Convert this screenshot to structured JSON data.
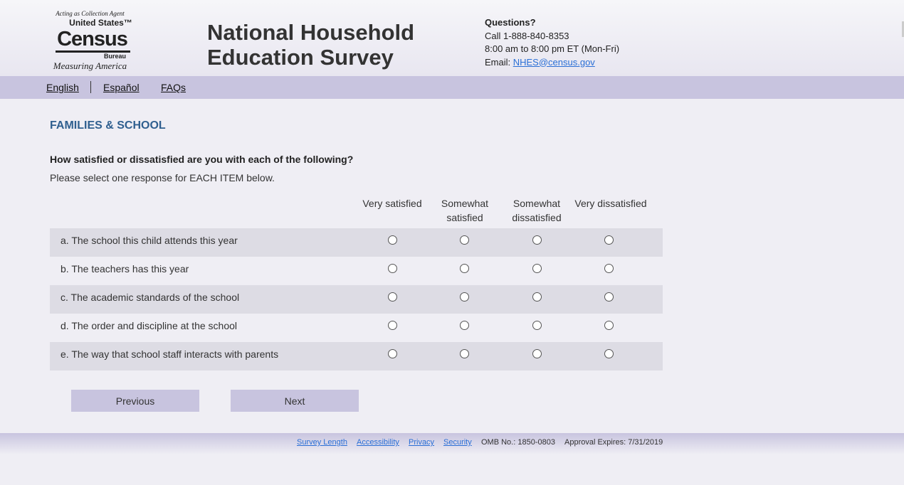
{
  "logo": {
    "agent": "Acting as Collection Agent",
    "us": "United States™",
    "census": "Census",
    "bureau": "Bureau",
    "tagline": "Measuring America"
  },
  "title": [
    "National Household",
    "Education Survey"
  ],
  "contact": {
    "heading": "Questions?",
    "phone": "Call 1-888-840-8353",
    "hours": "8:00 am to 8:00 pm ET (Mon-Fri)",
    "email_label": "Email: ",
    "email": "NHES@census.gov"
  },
  "nav": {
    "english": "English",
    "espanol": "Español",
    "faqs": "FAQs"
  },
  "section": "FAMILIES & SCHOOL",
  "question": "How satisfied or dissatisfied are you with each of the following?",
  "instruction": "Please select one response for EACH ITEM below.",
  "columns": [
    [
      "Very satisfied",
      ""
    ],
    [
      "Somewhat",
      "satisfied"
    ],
    [
      "Somewhat",
      "dissatisfied"
    ],
    [
      "Very dissatisfied",
      ""
    ]
  ],
  "items": [
    "a. The school this child attends this year",
    "b. The teachers has this year",
    "c. The academic standards of the school",
    "d. The order and discipline at the school",
    "e. The way that school staff interacts with parents"
  ],
  "buttons": {
    "previous": "Previous",
    "next": "Next"
  },
  "footer": {
    "survey_length": "Survey Length",
    "accessibility": "Accessibility",
    "privacy": "Privacy",
    "security": "Security",
    "omb": "OMB No.: 1850-0803",
    "expires": "Approval Expires: 7/31/2019"
  }
}
